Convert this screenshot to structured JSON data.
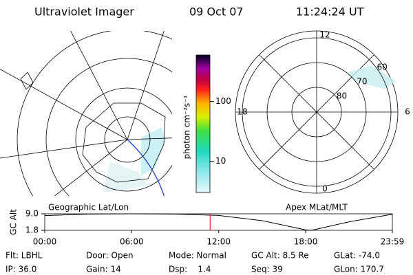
{
  "header": {
    "title": "Ultraviolet Imager",
    "date": "09 Oct 07",
    "time": "11:24:24 UT"
  },
  "colorbar": {
    "label": "photon cm⁻²s⁻¹",
    "log": true,
    "clim": [
      3,
      600
    ],
    "ticks": [
      10,
      100
    ]
  },
  "maps": {
    "left_caption": "Geographic Lat/Lon",
    "right_caption": "Apex MLat/MLT",
    "mlt_ticks": [
      0,
      6,
      12,
      18
    ],
    "mlat_ticks": [
      80,
      70,
      60
    ]
  },
  "altitude": {
    "ylabel": "GC Alt",
    "ylim": [
      1.8,
      9.0
    ],
    "yticks": [
      1.8,
      {
        "value": 9.0,
        "label": "9.0"
      }
    ],
    "xlim": [
      0,
      23.98
    ],
    "xticks": [
      {
        "value": 0,
        "label": "00:00"
      },
      {
        "value": 6,
        "label": "06:00"
      },
      {
        "value": 12,
        "label": "12:00"
      },
      {
        "value": 18,
        "label": "18:00"
      },
      {
        "value": 23.98,
        "label": "23:59"
      }
    ],
    "x": [
      0,
      3,
      6,
      9,
      12,
      15,
      18,
      18.4,
      21,
      23.98
    ],
    "values": [
      8.2,
      8.9,
      9.0,
      8.9,
      8.3,
      6.0,
      2.0,
      1.8,
      5.5,
      8.8
    ],
    "marker": 11.41,
    "marker_color": "#e02020"
  },
  "footer": {
    "rows": [
      [
        "Flt: LBHL",
        "Door: Open",
        "Mode: Normal",
        "GC Alt: 8.5 Re",
        "GLat: -74.0"
      ],
      [
        "IP: 36.0",
        "Gain: 14",
        "Dsp:    1.4",
        "Seq: 39",
        "GLon: 170.7"
      ]
    ]
  }
}
